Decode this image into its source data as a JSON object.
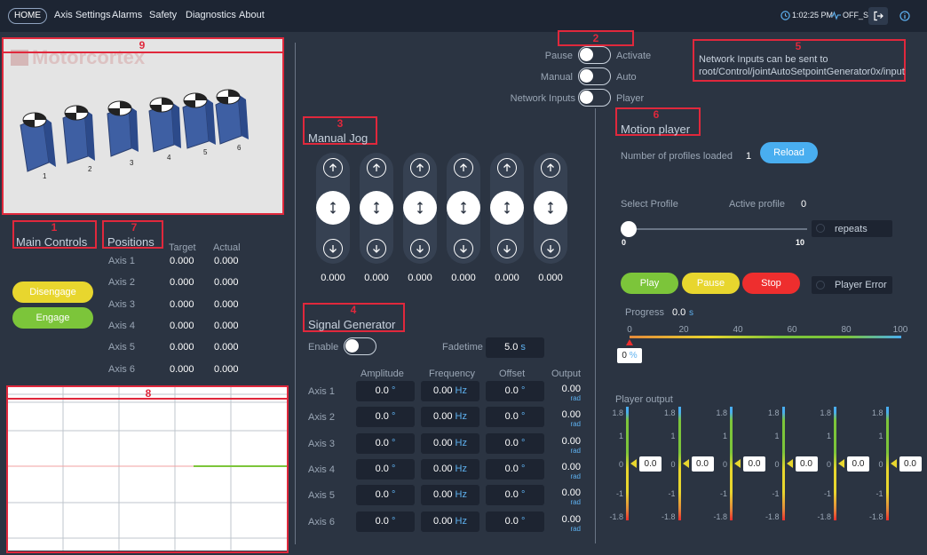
{
  "nav": {
    "items": [
      "HOME",
      "Axis Settings",
      "Alarms",
      "Safety",
      "Diagnostics",
      "About"
    ],
    "time": "1:02:25 PM",
    "state": "OFF_S"
  },
  "camera": {
    "logo_text": "Motorcortex",
    "axis_numbers": [
      "1",
      "2",
      "3",
      "4",
      "5",
      "6"
    ]
  },
  "annotations": [
    "1",
    "2",
    "3",
    "4",
    "5",
    "6",
    "7",
    "8",
    "9"
  ],
  "modes": [
    {
      "left": "Pause",
      "right": "Activate"
    },
    {
      "left": "Manual",
      "right": "Auto"
    },
    {
      "left": "Network Inputs",
      "right": "Player"
    }
  ],
  "network_note": "Network Inputs can be sent to root/Control/jointAutoSetpointGenerator0x/input",
  "main_controls": {
    "title": "Main Controls",
    "disengage": "Disengage",
    "engage": "Engage"
  },
  "positions": {
    "title": "Positions",
    "headers": [
      "Target",
      "Actual"
    ],
    "rows": [
      {
        "axis": "Axis 1",
        "target": "0.000",
        "actual": "0.000"
      },
      {
        "axis": "Axis 2",
        "target": "0.000",
        "actual": "0.000"
      },
      {
        "axis": "Axis 3",
        "target": "0.000",
        "actual": "0.000"
      },
      {
        "axis": "Axis 4",
        "target": "0.000",
        "actual": "0.000"
      },
      {
        "axis": "Axis 5",
        "target": "0.000",
        "actual": "0.000"
      },
      {
        "axis": "Axis 6",
        "target": "0.000",
        "actual": "0.000"
      }
    ]
  },
  "manual_jog": {
    "title": "Manual Jog",
    "values": [
      "0.000",
      "0.000",
      "0.000",
      "0.000",
      "0.000",
      "0.000"
    ]
  },
  "signal_generator": {
    "title": "Signal Generator",
    "enable_label": "Enable",
    "fadetime_label": "Fadetime",
    "fadetime_value": "5.0",
    "fadetime_unit": "s",
    "headers": [
      "Amplitude",
      "Frequency",
      "Offset",
      "Output"
    ],
    "rows": [
      {
        "axis": "Axis 1",
        "amplitude": "0.0",
        "frequency": "0.00",
        "offset": "0.0",
        "output": "0.00"
      },
      {
        "axis": "Axis 2",
        "amplitude": "0.0",
        "frequency": "0.00",
        "offset": "0.0",
        "output": "0.00"
      },
      {
        "axis": "Axis 3",
        "amplitude": "0.0",
        "frequency": "0.00",
        "offset": "0.0",
        "output": "0.00"
      },
      {
        "axis": "Axis 4",
        "amplitude": "0.0",
        "frequency": "0.00",
        "offset": "0.0",
        "output": "0.00"
      },
      {
        "axis": "Axis 5",
        "amplitude": "0.0",
        "frequency": "0.00",
        "offset": "0.0",
        "output": "0.00"
      },
      {
        "axis": "Axis 6",
        "amplitude": "0.0",
        "frequency": "0.00",
        "offset": "0.0",
        "output": "0.00"
      }
    ],
    "deg_unit": "°",
    "hz_unit": "Hz",
    "rad_unit": "rad"
  },
  "motion_player": {
    "title": "Motion player",
    "profiles_label": "Number of profiles loaded",
    "profiles_count": "1",
    "reload": "Reload",
    "select_profile": "Select Profile",
    "active_profile_label": "Active profile",
    "active_profile_value": "0",
    "slider_min": "0",
    "slider_max": "10",
    "slider_value": 0,
    "repeats": "repeats",
    "play": "Play",
    "pause": "Pause",
    "stop": "Stop",
    "player_error": "Player Error",
    "progress_label": "Progress",
    "progress_value": "0.0",
    "progress_unit": "s",
    "progress_ticks": [
      "0",
      "20",
      "40",
      "60",
      "80",
      "100"
    ],
    "progress_percent": "0",
    "percent_unit": "%",
    "output_label": "Player output",
    "meter_ticks": [
      "1.8",
      "1",
      "0",
      "-1",
      "-1.8"
    ],
    "meter_values": [
      "0.0",
      "0.0",
      "0.0",
      "0.0",
      "0.0",
      "0.0"
    ]
  },
  "colors": {
    "background": "#2b3442",
    "topbar": "#1d2533",
    "annotation": "#e0283c",
    "disengage": "#e8d62e",
    "engage": "#7cc53a",
    "reload": "#49aef0",
    "stop": "#ee2e2e"
  }
}
